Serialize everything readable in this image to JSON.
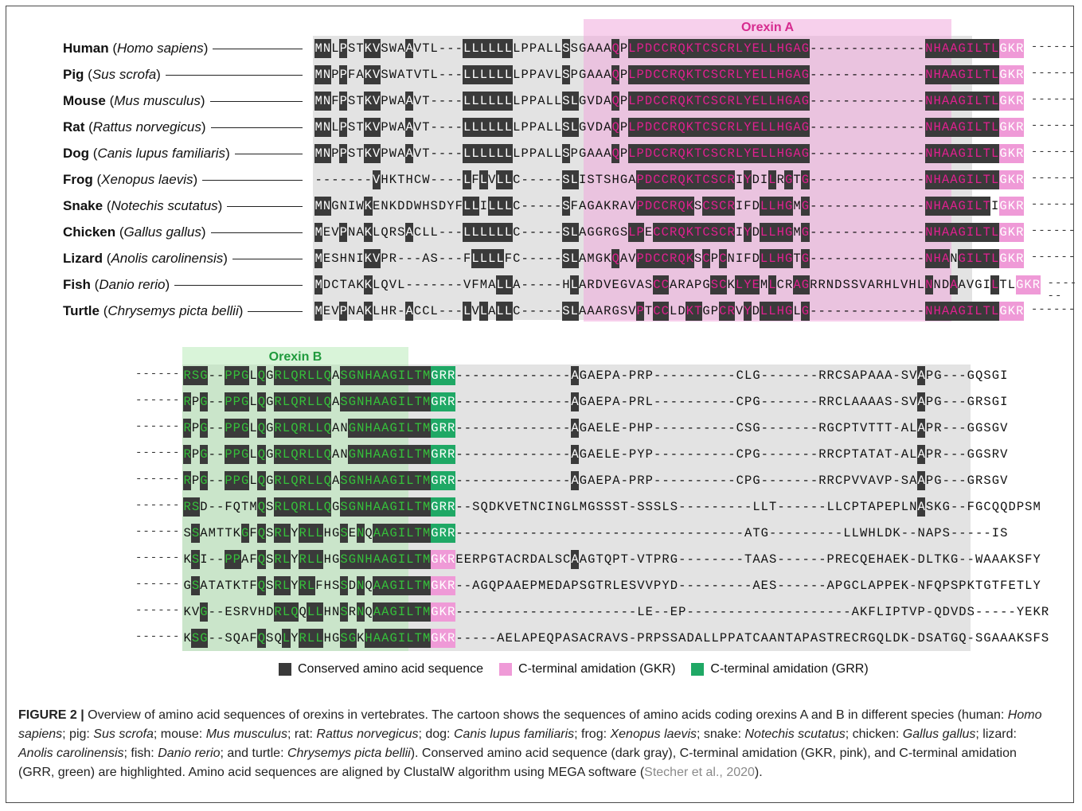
{
  "labels": [
    {
      "common": "Human",
      "latin": "Homo sapiens"
    },
    {
      "common": "Pig",
      "latin": "Sus scrofa"
    },
    {
      "common": "Mouse",
      "latin": "Mus musculus"
    },
    {
      "common": "Rat",
      "latin": "Rattus norvegicus"
    },
    {
      "common": "Dog",
      "latin": "Canis lupus familiaris"
    },
    {
      "common": "Frog",
      "latin": "Xenopus laevis"
    },
    {
      "common": "Snake",
      "latin": "Notechis scutatus"
    },
    {
      "common": "Chicken",
      "latin": "Gallus gallus"
    },
    {
      "common": "Lizard",
      "latin": "Anolis carolinensis"
    },
    {
      "common": "Fish",
      "latin": "Danio rerio"
    },
    {
      "common": "Turtle",
      "latin": "Chrysemys picta bellii"
    }
  ],
  "panel_a": {
    "highlight_title": "Orexin A",
    "rows": [
      "MNLPSTKVSWAAVTL---LLLLLLLPPALLSSGAAAQPLPDCCRQKTCSCRLYELLHGAG--------------NHAAGILTLGKR",
      "MNPPFAKVSWATVTL---LLLLLLLPPAVLSPGAAAQPLPDCCRQKTCSCRLYELLHGAG--------------NHAAGILTLGKR",
      "MNFPSTKVPWAAVT----LLLLLLLPPALLSLGVDAQPLPDCCRQKTCSCRLYELLHGAG--------------NHAAGILTLGKR",
      "MNLPSTKVPWAAVT----LLLLLLLPPALLSLGVDAQPLPDCCRQKTCSCRLYELLHGAG--------------NHAAGILTLGKR",
      "MNPPSTKVPWAAVT----LLLLLLLPPALLSPGAAAQPLPDCCRQKTCSCRLYELLHGAG--------------NHAAGILTLGKR",
      "-------VHKTHCW----LFLVLLC-----SLISTSHGAPDCCRQKTCSCRIYDILRGTG--------------NHAAGILTLGKR",
      "MNGNIWKENKDDWHSDYFLLILLLC-----SFAGAKRAVPDCCRQKSCSCRIFDLLHGMG--------------NHAAGILTIGKR",
      "MEVPNAKLQRSACLL---LLLLLLC-----SLAGGRGSLPECCRQKTCSCRIYDLLHGMG--------------NHAAGILTLGKR",
      "MESHNIKVPR---AS---FLLLLFC-----SLAMGKQAVPDCCRQKSCPCNIFDLLHGTG--------------NHANGILTLGKR",
      "MDCTAKKLQVL-------VFMALLA-----HLARDVEGVASCCARAPGSCKLYEMLCRAGRRNDSSVARHLVHLNNDAAVGILTLGKR",
      "MEVPNAKLHR-ACCL---LVLALLC-----SLAAARGSVPTCCLDKTGPCRVYDLLHGLG--------------NHAAGILTLGKR"
    ]
  },
  "panel_b": {
    "highlight_title": "Orexin B",
    "rows": [
      "RSG--PPGLQGRLQRLLQASGNHAAGILTMGRR--------------AGAEPA-PRP----------CLG-------RRCSAPAAA-SVAPG---GQSGI",
      "RPG--PPGLQGRLQRLLQASGNHAAGILTMGRR--------------AGAEPA-PRL----------CPG-------RRCLAAAAS-SVAPG---GRSGI",
      "RPG--PPGLQGRLQRLLQANGNHAAGILTMGRR--------------AGAELE-PHP----------CSG-------RGCPTVTTT-ALAPR---GGSGV",
      "RPG--PPGLQGRLQRLLQANGNHAAGILTMGRR--------------AGAELE-PYP----------CPG-------RRCPTATAT-ALAPR---GGSRV",
      "RPG--PPGLQGRLQRLLQASGNHAAGILTMGRR--------------AGAEPA-PRP----------CPG-------RRCPVVAVP-SAAPG---GRSGV",
      "RSD--FQTMQSRLQRLLQGSGNHAAGILTMGRR--SQDKVETNCINGLMGSSST-SSSLS---------LLT------LLCPTAPEPLNASKG--FGCQQDPSM",
      "SSAMTTKGFQSRLYRLLHGSENQAAGILTMGRR-----------------------------------ATG---------LLWHLDK--NAPS-----IS",
      "KSI--PPAFQSRLYRLLHGSGNHAAGILTMGKREERPGTACRDALSCAAGTQPT-VTPRG--------TAAS------PRECQEHAEK-DLTKG--WAAAKSFY",
      "GSATATKTFQSRLYRLFHSSDNQAAGILTMGKR--AGQPAAEPMEDAPSGTRLESVVPYD---------AES------APGCLAPPEK-NFQPSPKTGTFETLY",
      "KVG--ESRVHDRLQQLLHNSRNQAAGILTMGKR----------------------LE--EP--------------------AKFLIPTVP-QDVDS-----YEKR",
      "KSG--SQAFQSQLYRLLHGSGKHAAGILTMGKR-----AELAPEQPASACRAVS-PRPSSADALLPPATCAANTAPASTRECRGQLDK-DSATGQ-SGAAAKSFS"
    ]
  },
  "legend": [
    {
      "label": "Conserved amino acid sequence",
      "color": "#3a3a3a"
    },
    {
      "label": "C-terminal amidation (GKR)",
      "color": "#ef9ad7"
    },
    {
      "label": "C-terminal amidation (GRR)",
      "color": "#1fa865"
    }
  ],
  "caption": {
    "figure_label": "FIGURE 2 |",
    "text_1": " Overview of amino acid sequences of orexins in vertebrates. The cartoon shows the sequences of amino acids coding orexins A and B in different species (human: ",
    "s1": "Homo sapiens",
    "t2": "; pig: ",
    "s2": "Sus scrofa",
    "t3": "; mouse: ",
    "s3": "Mus musculus",
    "t4": "; rat: ",
    "s4": "Rattus norvegicus",
    "t5": "; dog: ",
    "s5": "Canis lupus familiaris",
    "t6": "; frog: ",
    "s6": "Xenopus laevis",
    "t7": "; snake: ",
    "s7": "Notechis scutatus",
    "t8": "; chicken: ",
    "s8": "Gallus gallus",
    "t9": "; lizard: ",
    "s9": "Anolis carolinensis",
    "t10": "; fish: ",
    "s10": "Danio rerio",
    "t11": "; and turtle: ",
    "s11": "Chrysemys picta bellii",
    "t12": "). Conserved amino acid sequence (dark gray), C-terminal amidation (GKR, pink), and C-terminal amidation (GRR, green) are highlighted. Amino acid sequences are aligned by ClustalW algorithm using MEGA software (",
    "ref": "Stecher et al., 2020",
    "t13": ")."
  }
}
